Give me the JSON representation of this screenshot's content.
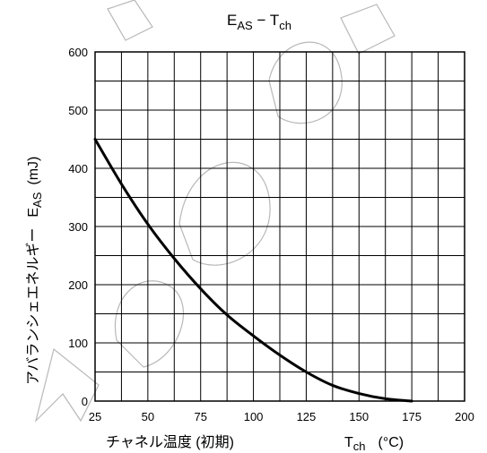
{
  "chart_data": {
    "type": "line",
    "title": {
      "main": "E",
      "main_sub": "AS",
      "dash": " − ",
      "second": "T",
      "second_sub": "ch"
    },
    "xlabel": {
      "text": "チャネル温度 (初期)",
      "symbol": "T",
      "symbol_sub": "ch",
      "unit": "(°C)"
    },
    "ylabel": {
      "text": "アバランシェエネルギー",
      "symbol": "E",
      "symbol_sub": "AS",
      "unit": "(mJ)"
    },
    "xlim": [
      25,
      200
    ],
    "ylim": [
      0,
      600
    ],
    "xticks": [
      25,
      50,
      75,
      100,
      125,
      150,
      175,
      200
    ],
    "yticks": [
      0,
      100,
      200,
      300,
      400,
      500,
      600
    ],
    "x_minor_step": 12.5,
    "y_minor_step": 50,
    "grid": true,
    "series": [
      {
        "x": [
          25,
          37.5,
          50,
          62.5,
          75,
          87.5,
          100,
          112.5,
          125,
          137.5,
          150,
          162.5,
          175
        ],
        "y": [
          450,
          373,
          304,
          245,
          193,
          148,
          112,
          79,
          50,
          27,
          13,
          4,
          0
        ]
      }
    ]
  }
}
